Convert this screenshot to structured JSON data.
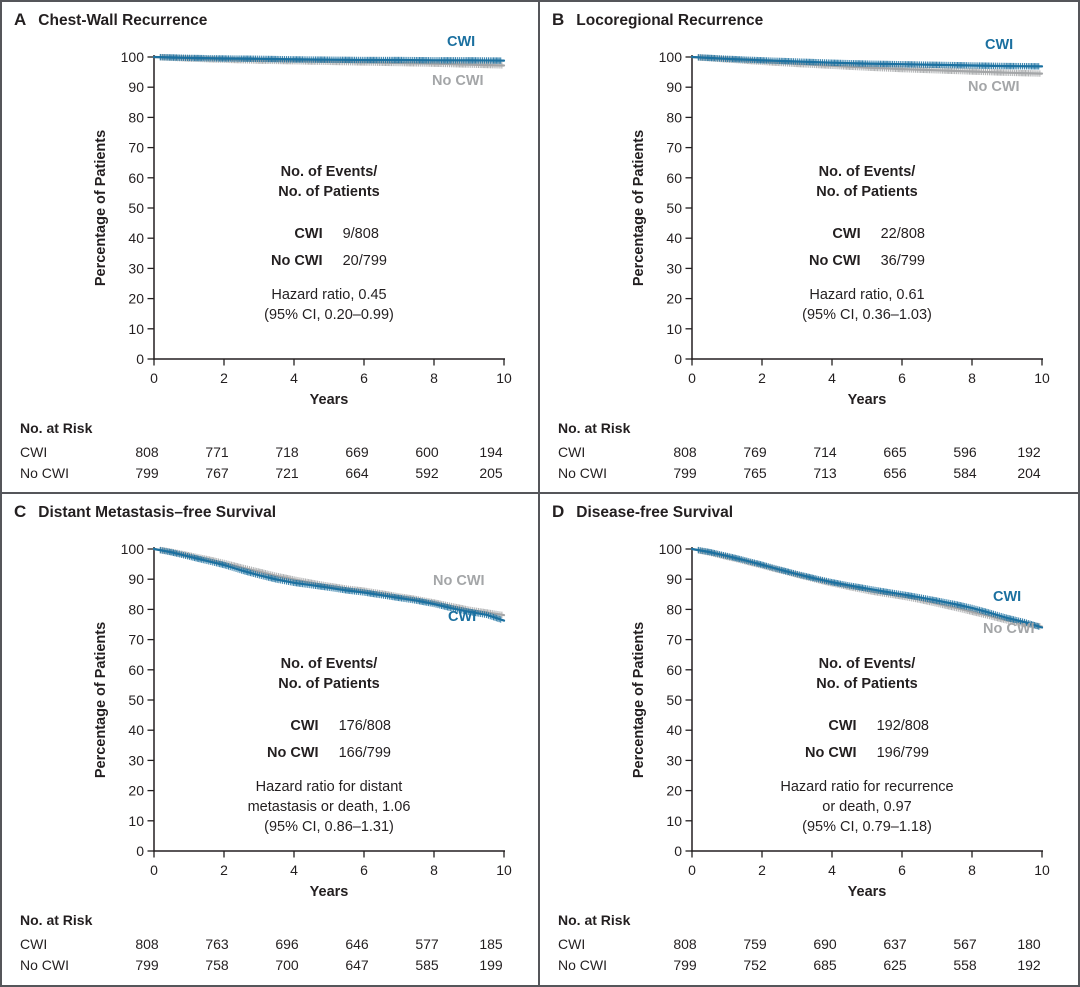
{
  "figure": {
    "colors": {
      "cwi": "#1B70A0",
      "no_cwi": "#A4A6A8",
      "axis": "#231F20"
    },
    "axis": {
      "y_label": "Percentage of Patients",
      "x_label": "Years"
    },
    "events_header": [
      "No. of Events/",
      "No. of Patients"
    ],
    "at_risk_header": "No. at Risk",
    "series_labels": {
      "cwi": "CWI",
      "no_cwi": "No CWI"
    }
  },
  "panels": [
    {
      "letter": "A",
      "title": "Chest-Wall Recurrence",
      "events": [
        {
          "label": "CWI",
          "value": "9/808"
        },
        {
          "label": "No CWI",
          "value": "20/799"
        }
      ],
      "hazard": [
        "Hazard ratio, 0.45",
        "(95% CI, 0.20–0.99)"
      ],
      "at_risk": [
        {
          "label": "CWI",
          "values": [
            "808",
            "771",
            "718",
            "669",
            "600",
            "194"
          ]
        },
        {
          "label": "No CWI",
          "values": [
            "799",
            "767",
            "721",
            "664",
            "592",
            "205"
          ]
        }
      ]
    },
    {
      "letter": "B",
      "title": "Locoregional Recurrence",
      "events": [
        {
          "label": "CWI",
          "value": "22/808"
        },
        {
          "label": "No CWI",
          "value": "36/799"
        }
      ],
      "hazard": [
        "Hazard ratio, 0.61",
        "(95% CI, 0.36–1.03)"
      ],
      "at_risk": [
        {
          "label": "CWI",
          "values": [
            "808",
            "769",
            "714",
            "665",
            "596",
            "192"
          ]
        },
        {
          "label": "No CWI",
          "values": [
            "799",
            "765",
            "713",
            "656",
            "584",
            "204"
          ]
        }
      ]
    },
    {
      "letter": "C",
      "title": "Distant Metastasis–free Survival",
      "events": [
        {
          "label": "CWI",
          "value": "176/808"
        },
        {
          "label": "No CWI",
          "value": "166/799"
        }
      ],
      "hazard": [
        "Hazard ratio for distant",
        "metastasis or death, 1.06",
        "(95% CI, 0.86–1.31)"
      ],
      "at_risk": [
        {
          "label": "CWI",
          "values": [
            "808",
            "763",
            "696",
            "646",
            "577",
            "185"
          ]
        },
        {
          "label": "No CWI",
          "values": [
            "799",
            "758",
            "700",
            "647",
            "585",
            "199"
          ]
        }
      ]
    },
    {
      "letter": "D",
      "title": "Disease-free Survival",
      "events": [
        {
          "label": "CWI",
          "value": "192/808"
        },
        {
          "label": "No CWI",
          "value": "196/799"
        }
      ],
      "hazard": [
        "Hazard ratio for recurrence",
        "or death, 0.97",
        "(95% CI, 0.79–1.18)"
      ],
      "at_risk": [
        {
          "label": "CWI",
          "values": [
            "808",
            "759",
            "690",
            "637",
            "567",
            "180"
          ]
        },
        {
          "label": "No CWI",
          "values": [
            "799",
            "752",
            "685",
            "625",
            "558",
            "192"
          ]
        }
      ]
    }
  ],
  "chart_data": [
    {
      "type": "line",
      "title": "Chest-Wall Recurrence",
      "xlabel": "Years",
      "ylabel": "Percentage of Patients",
      "xlim": [
        0,
        10
      ],
      "ylim": [
        0,
        100
      ],
      "x_ticks": [
        0,
        2,
        4,
        6,
        8,
        10
      ],
      "y_ticks": [
        0,
        10,
        20,
        30,
        40,
        50,
        60,
        70,
        80,
        90,
        100
      ],
      "grid": false,
      "legend_position": "end-of-curve",
      "series": [
        {
          "name": "CWI",
          "color": "#1B70A0",
          "x": [
            0,
            1,
            2,
            3,
            4,
            5,
            6,
            7,
            8,
            9,
            10
          ],
          "y": [
            100,
            99.7,
            99.5,
            99.4,
            99.2,
            99.1,
            99.0,
            99.0,
            98.9,
            98.9,
            98.8
          ]
        },
        {
          "name": "No CWI",
          "color": "#A4A6A8",
          "x": [
            0,
            1,
            2,
            3,
            4,
            5,
            6,
            7,
            8,
            9,
            10
          ],
          "y": [
            100,
            99.5,
            99.1,
            98.8,
            98.6,
            98.4,
            98.2,
            98.0,
            97.8,
            97.5,
            97.2
          ]
        }
      ]
    },
    {
      "type": "line",
      "title": "Locoregional Recurrence",
      "xlabel": "Years",
      "ylabel": "Percentage of Patients",
      "xlim": [
        0,
        10
      ],
      "ylim": [
        0,
        100
      ],
      "x_ticks": [
        0,
        2,
        4,
        6,
        8,
        10
      ],
      "y_ticks": [
        0,
        10,
        20,
        30,
        40,
        50,
        60,
        70,
        80,
        90,
        100
      ],
      "grid": false,
      "legend_position": "end-of-curve",
      "series": [
        {
          "name": "CWI",
          "color": "#1B70A0",
          "x": [
            0,
            1,
            2,
            3,
            4,
            5,
            6,
            7,
            8,
            9,
            10
          ],
          "y": [
            100,
            99.4,
            98.9,
            98.5,
            98.1,
            97.8,
            97.6,
            97.4,
            97.2,
            97.0,
            96.9
          ]
        },
        {
          "name": "No CWI",
          "color": "#A4A6A8",
          "x": [
            0,
            1,
            2,
            3,
            4,
            5,
            6,
            7,
            8,
            9,
            10
          ],
          "y": [
            100,
            99.2,
            98.4,
            97.7,
            97.1,
            96.5,
            96.0,
            95.6,
            95.2,
            94.8,
            94.5
          ]
        }
      ]
    },
    {
      "type": "line",
      "title": "Distant Metastasis–free Survival",
      "xlabel": "Years",
      "ylabel": "Percentage of Patients",
      "xlim": [
        0,
        10
      ],
      "ylim": [
        0,
        100
      ],
      "x_ticks": [
        0,
        2,
        4,
        6,
        8,
        10
      ],
      "y_ticks": [
        0,
        10,
        20,
        30,
        40,
        50,
        60,
        70,
        80,
        90,
        100
      ],
      "grid": false,
      "legend_position": "end-of-curve",
      "series": [
        {
          "name": "CWI",
          "color": "#1B70A0",
          "x": [
            0,
            0.5,
            1,
            1.5,
            2,
            2.5,
            3,
            3.5,
            4,
            4.5,
            5,
            5.5,
            6,
            6.5,
            7,
            7.5,
            8,
            8.5,
            9,
            9.5,
            10
          ],
          "y": [
            100,
            98.9,
            97.5,
            96.1,
            94.7,
            92.9,
            91.3,
            89.9,
            88.8,
            88.0,
            87.2,
            86.3,
            85.6,
            84.7,
            83.8,
            82.9,
            81.8,
            80.4,
            79.2,
            78.2,
            76.3
          ]
        },
        {
          "name": "No CWI",
          "color": "#A4A6A8",
          "x": [
            0,
            0.5,
            1,
            1.5,
            2,
            2.5,
            3,
            3.5,
            4,
            4.5,
            5,
            5.5,
            6,
            6.5,
            7,
            7.5,
            8,
            8.5,
            9,
            9.5,
            10
          ],
          "y": [
            100,
            99.1,
            97.9,
            96.7,
            95.4,
            93.9,
            92.5,
            91.1,
            89.9,
            88.8,
            87.8,
            86.9,
            86.2,
            85.3,
            84.3,
            83.4,
            82.3,
            81.1,
            79.9,
            79.0,
            78.1
          ]
        }
      ]
    },
    {
      "type": "line",
      "title": "Disease-free Survival",
      "xlabel": "Years",
      "ylabel": "Percentage of Patients",
      "xlim": [
        0,
        10
      ],
      "ylim": [
        0,
        100
      ],
      "x_ticks": [
        0,
        2,
        4,
        6,
        8,
        10
      ],
      "y_ticks": [
        0,
        10,
        20,
        30,
        40,
        50,
        60,
        70,
        80,
        90,
        100
      ],
      "grid": false,
      "legend_position": "end-of-curve",
      "series": [
        {
          "name": "CWI",
          "color": "#1B70A0",
          "x": [
            0,
            0.5,
            1,
            1.5,
            2,
            2.5,
            3,
            3.5,
            4,
            4.5,
            5,
            5.5,
            6,
            6.5,
            7,
            7.5,
            8,
            8.5,
            9,
            9.5,
            10
          ],
          "y": [
            100,
            99.0,
            97.7,
            96.3,
            94.8,
            93.2,
            91.7,
            90.3,
            89.0,
            87.9,
            86.9,
            85.9,
            85.0,
            84.0,
            82.9,
            81.8,
            80.5,
            78.9,
            77.2,
            75.8,
            74.0
          ]
        },
        {
          "name": "No CWI",
          "color": "#A4A6A8",
          "x": [
            0,
            0.5,
            1,
            1.5,
            2,
            2.5,
            3,
            3.5,
            4,
            4.5,
            5,
            5.5,
            6,
            6.5,
            7,
            7.5,
            8,
            8.5,
            9,
            9.5,
            10
          ],
          "y": [
            100,
            98.8,
            97.4,
            96.0,
            94.5,
            93.0,
            91.5,
            90.0,
            88.6,
            87.4,
            86.2,
            85.2,
            84.3,
            83.2,
            81.9,
            80.6,
            79.2,
            77.8,
            76.3,
            75.2,
            74.3
          ]
        }
      ]
    }
  ]
}
